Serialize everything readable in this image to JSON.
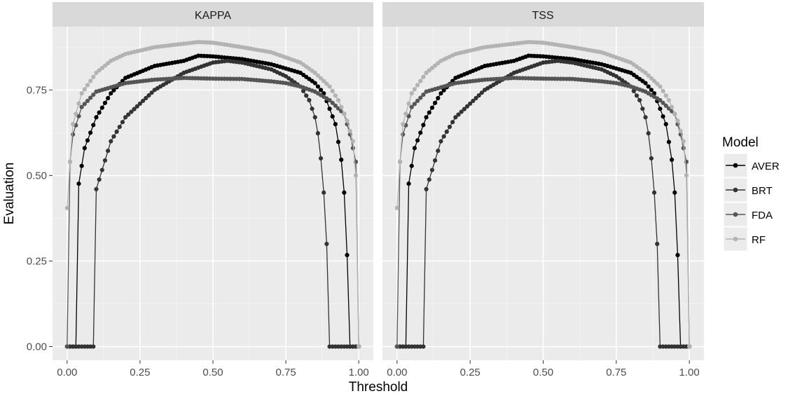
{
  "chart_data": {
    "type": "line",
    "xlabel": "Threshold",
    "ylabel": "Evaluation",
    "xlim": [
      -0.05,
      1.05
    ],
    "ylim": [
      -0.04,
      0.935
    ],
    "x_ticks": [
      0,
      0.25,
      0.5,
      0.75,
      1
    ],
    "x_tick_labels": [
      "0.00",
      "0.25",
      "0.50",
      "0.75",
      "1.00"
    ],
    "y_ticks": [
      0,
      0.25,
      0.5,
      0.75
    ],
    "y_tick_labels": [
      "0.00",
      "0.25",
      "0.50",
      "0.75"
    ],
    "grid": true,
    "legend_position": "right",
    "legend_title": "Model",
    "panels": [
      {
        "label": "KAPPA"
      },
      {
        "label": "TSS"
      }
    ],
    "series": [
      {
        "name": "AVER",
        "color": "#000000",
        "knots": [
          [
            0,
            0
          ],
          [
            0.03,
            0
          ],
          [
            0.035,
            0.45
          ],
          [
            0.06,
            0.58
          ],
          [
            0.1,
            0.67
          ],
          [
            0.15,
            0.74
          ],
          [
            0.2,
            0.785
          ],
          [
            0.3,
            0.82
          ],
          [
            0.4,
            0.835
          ],
          [
            0.45,
            0.85
          ],
          [
            0.5,
            0.848
          ],
          [
            0.6,
            0.84
          ],
          [
            0.7,
            0.825
          ],
          [
            0.8,
            0.8
          ],
          [
            0.85,
            0.77
          ],
          [
            0.88,
            0.74
          ],
          [
            0.92,
            0.65
          ],
          [
            0.945,
            0.52
          ],
          [
            0.955,
            0.38
          ],
          [
            0.963,
            0.2
          ],
          [
            0.97,
            0
          ],
          [
            1,
            0
          ]
        ]
      },
      {
        "name": "BRT",
        "color": "#333333",
        "knots": [
          [
            0,
            0
          ],
          [
            0.09,
            0
          ],
          [
            0.1,
            0.46
          ],
          [
            0.15,
            0.6
          ],
          [
            0.2,
            0.67
          ],
          [
            0.3,
            0.75
          ],
          [
            0.4,
            0.8
          ],
          [
            0.5,
            0.83
          ],
          [
            0.55,
            0.835
          ],
          [
            0.6,
            0.83
          ],
          [
            0.7,
            0.81
          ],
          [
            0.75,
            0.79
          ],
          [
            0.8,
            0.76
          ],
          [
            0.83,
            0.72
          ],
          [
            0.85,
            0.67
          ],
          [
            0.865,
            0.6
          ],
          [
            0.875,
            0.5
          ],
          [
            0.88,
            0.45
          ],
          [
            0.885,
            0.38
          ],
          [
            0.89,
            0.3
          ],
          [
            0.895,
            0.185
          ],
          [
            0.9,
            0
          ],
          [
            1,
            0
          ]
        ]
      },
      {
        "name": "FDA",
        "color": "#555555",
        "knots": [
          [
            0,
            0
          ],
          [
            0.005,
            0.5
          ],
          [
            0.02,
            0.62
          ],
          [
            0.05,
            0.7
          ],
          [
            0.1,
            0.745
          ],
          [
            0.2,
            0.77
          ],
          [
            0.3,
            0.78
          ],
          [
            0.4,
            0.785
          ],
          [
            0.5,
            0.783
          ],
          [
            0.6,
            0.782
          ],
          [
            0.7,
            0.775
          ],
          [
            0.75,
            0.77
          ],
          [
            0.8,
            0.76
          ],
          [
            0.85,
            0.745
          ],
          [
            0.9,
            0.72
          ],
          [
            0.95,
            0.68
          ],
          [
            0.97,
            0.62
          ],
          [
            0.99,
            0.54
          ],
          [
            0.995,
            0.43
          ],
          [
            1,
            0
          ]
        ]
      },
      {
        "name": "RF",
        "color": "#b3b3b3",
        "knots": [
          [
            0,
            0.405
          ],
          [
            0.01,
            0.54
          ],
          [
            0.02,
            0.65
          ],
          [
            0.05,
            0.74
          ],
          [
            0.1,
            0.8
          ],
          [
            0.15,
            0.835
          ],
          [
            0.2,
            0.855
          ],
          [
            0.3,
            0.875
          ],
          [
            0.4,
            0.885
          ],
          [
            0.45,
            0.89
          ],
          [
            0.5,
            0.888
          ],
          [
            0.6,
            0.875
          ],
          [
            0.7,
            0.86
          ],
          [
            0.8,
            0.83
          ],
          [
            0.85,
            0.8
          ],
          [
            0.9,
            0.76
          ],
          [
            0.93,
            0.72
          ],
          [
            0.96,
            0.66
          ],
          [
            0.98,
            0.6
          ],
          [
            0.99,
            0.5
          ],
          [
            0.995,
            0.45
          ],
          [
            1,
            0
          ]
        ]
      }
    ]
  }
}
